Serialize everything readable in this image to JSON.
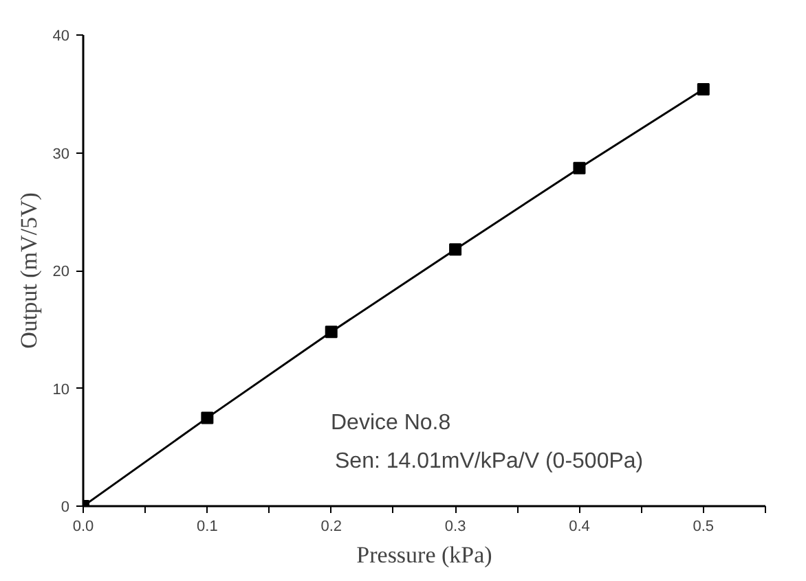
{
  "chart_data": {
    "type": "line",
    "xlabel": "Pressure (kPa)",
    "ylabel": "Output (mV/5V)",
    "x": [
      0.0,
      0.1,
      0.2,
      0.3,
      0.4,
      0.5
    ],
    "series": [
      {
        "color": "#000000",
        "values": [
          0,
          7.5,
          14.8,
          21.8,
          28.7,
          35.4
        ]
      }
    ],
    "marker": "square",
    "line_style": "solid",
    "grid": false,
    "xlim": [
      0,
      0.55
    ],
    "ylim": [
      0,
      40
    ],
    "xticks": [
      {
        "value": 0.0,
        "label": "0.0"
      },
      {
        "value": 0.05,
        "label": null
      },
      {
        "value": 0.1,
        "label": "0.1"
      },
      {
        "value": 0.15,
        "label": null
      },
      {
        "value": 0.2,
        "label": "0.2"
      },
      {
        "value": 0.25,
        "label": null
      },
      {
        "value": 0.3,
        "label": "0.3"
      },
      {
        "value": 0.35,
        "label": null
      },
      {
        "value": 0.4,
        "label": "0.4"
      },
      {
        "value": 0.45,
        "label": null
      },
      {
        "value": 0.5,
        "label": "0.5"
      },
      {
        "value": 0.55,
        "label": null
      }
    ],
    "yticks": [
      0,
      10,
      20,
      30,
      40
    ],
    "annotations": [
      "Device No.8",
      "Sen: 14.01mV/kPa/V (0-500Pa)"
    ]
  }
}
